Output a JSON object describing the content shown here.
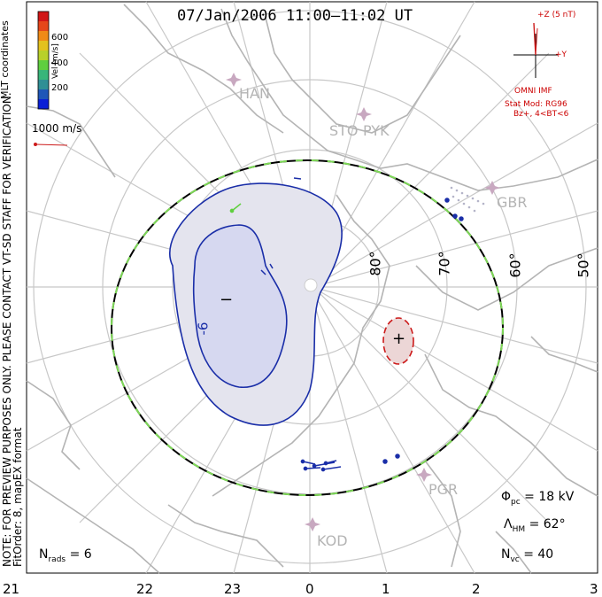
{
  "title": "07/Jan/2006 11:00–11:02 UT",
  "coordinates_label": "MLT coordinates",
  "note_line1": "NOTE: FOR PREVIEW PURPOSES ONLY. PLEASE CONTACT VT-SD STAFF FOR VERIFICATION.",
  "note_line2": "FitOrder: 8, mapEX format",
  "colorbar": {
    "title": "Vel [m/s]",
    "ticks": [
      "600",
      "400",
      "200"
    ],
    "colors": [
      "#0a1fd6",
      "#1f56b8",
      "#2f8f95",
      "#38b57a",
      "#5fcf3f",
      "#b8d02a",
      "#e3c11e",
      "#f08a17",
      "#e5471a",
      "#d11616"
    ]
  },
  "vector_scale": "1000 m/s",
  "imf": {
    "z_label": "+Z (5 nT)",
    "y_label": "+Y",
    "source": "OMNI IMF",
    "model": "Stat Mod: RG96",
    "model_condition": "Bz+, 4<BT<6"
  },
  "stations": [
    "HAN",
    "STO",
    "PYK",
    "GBR",
    "PGR",
    "KOD"
  ],
  "latitude_labels": [
    "80°",
    "70°",
    "60°",
    "50°"
  ],
  "contours": {
    "negative_label": "−",
    "positive_label": "+",
    "contour_value": "-6"
  },
  "stats": {
    "phi_pc": "= 18 kV",
    "lambda_hm": "= 62°",
    "n_vc": "= 40",
    "n_rads": "= 6"
  },
  "mlt_labels": [
    "21",
    "22",
    "23",
    "0",
    "1",
    "2",
    "3"
  ],
  "colors": {
    "grid": "#c8c8c8",
    "land": "#b4b4b4",
    "neg_contour": "#1a2ea8",
    "pos_contour": "#cc1a1a",
    "boundary_green": "#7ed957"
  }
}
